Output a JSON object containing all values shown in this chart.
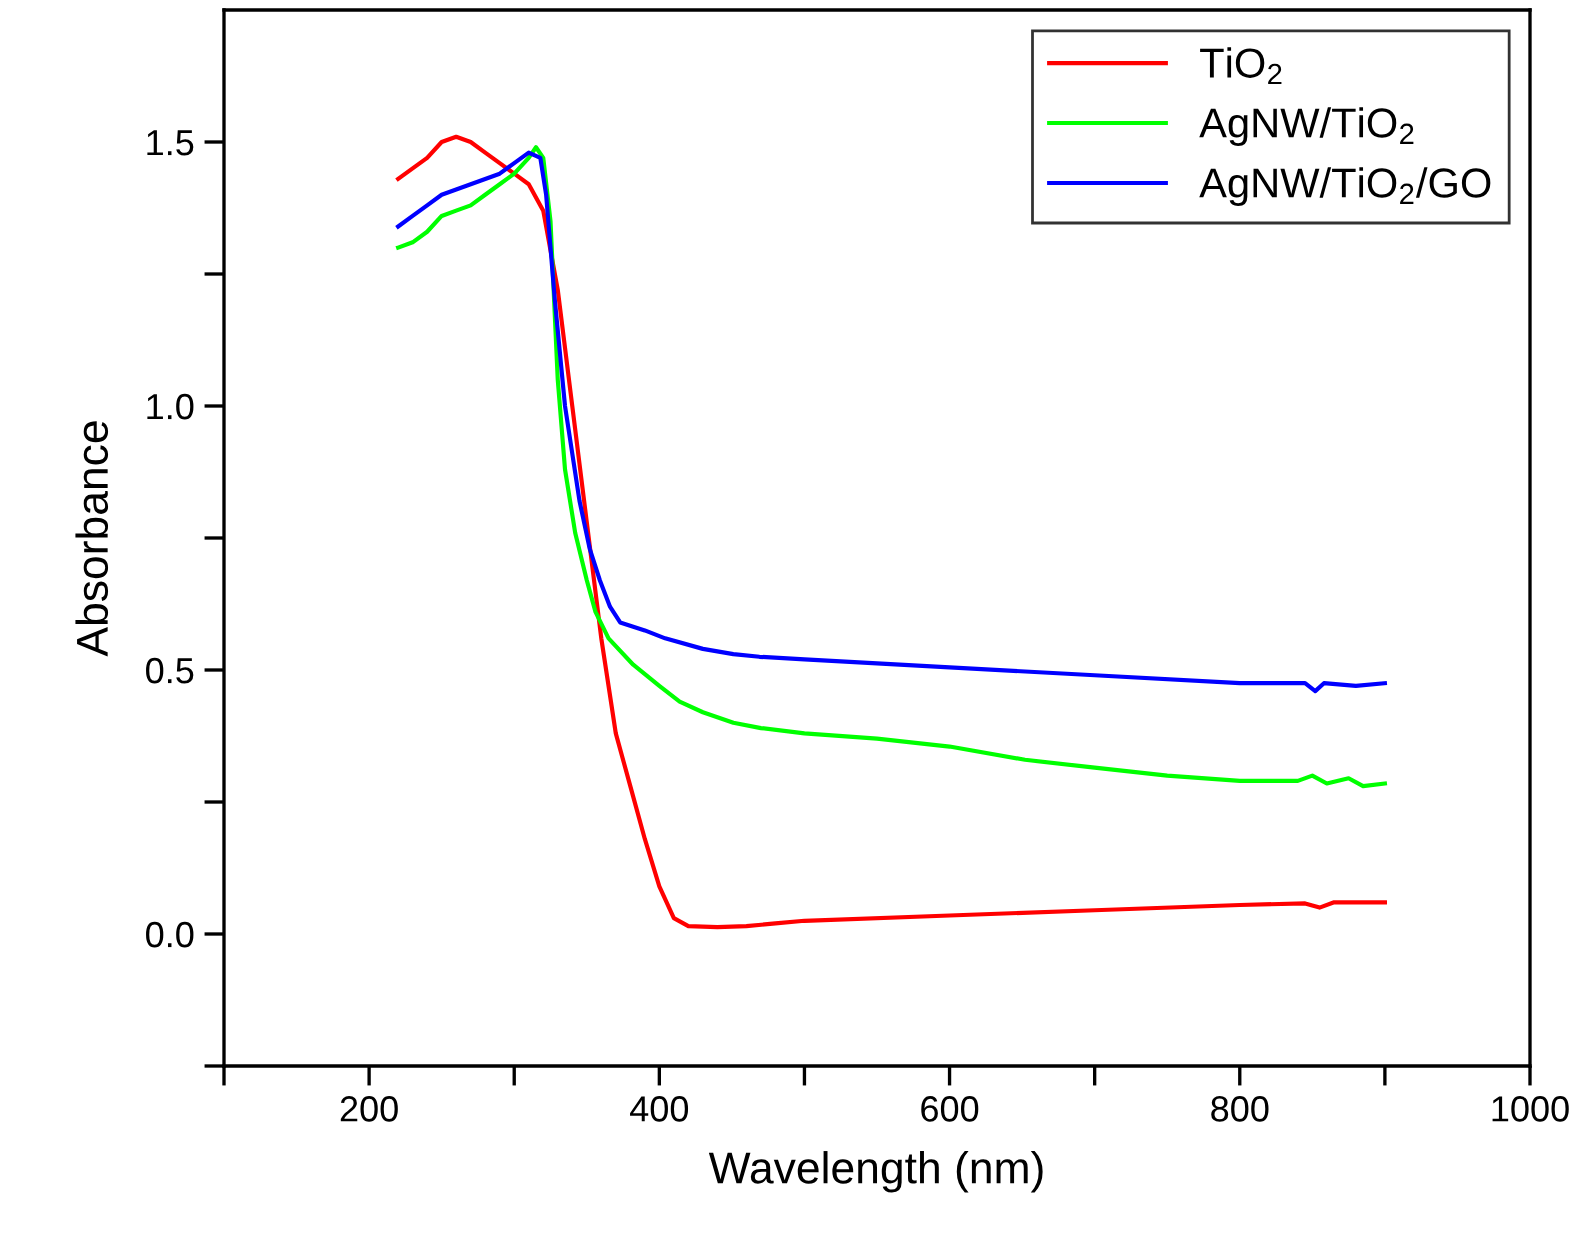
{
  "chart_data": {
    "type": "line",
    "xlabel": "Wavelength (nm)",
    "ylabel": "Absorbance",
    "xlim": [
      100,
      1000
    ],
    "ylim": [
      -0.25,
      1.75
    ],
    "xticks": [
      {
        "value": 100,
        "label": null
      },
      200,
      {
        "value": 300,
        "label": null
      },
      400,
      {
        "value": 500,
        "label": null
      },
      600,
      {
        "value": 700,
        "label": null
      },
      800,
      {
        "value": 900,
        "label": null
      },
      1000
    ],
    "yticks": [
      {
        "value": -0.25,
        "label": null
      },
      {
        "value": 0,
        "label": "0.0"
      },
      {
        "value": 0.25,
        "label": null
      },
      0.5,
      {
        "value": 0.75,
        "label": null
      },
      {
        "value": 1,
        "label": "1.0"
      },
      {
        "value": 1.25,
        "label": null
      },
      1.5
    ],
    "grid": false,
    "legend": "top right",
    "line_style": "solid",
    "marker": "none",
    "series": [
      {
        "name": "TiO$_{2}$",
        "color": "#ff0000",
        "x": [
          220,
          230,
          240,
          250,
          260,
          270,
          280,
          290,
          300,
          310,
          320,
          330,
          340,
          350,
          360,
          370,
          380,
          390,
          400,
          410,
          420,
          440,
          460,
          480,
          500,
          600,
          700,
          800,
          845,
          855,
          865,
          885,
          900
        ],
        "values": [
          1.43,
          1.45,
          1.47,
          1.5,
          1.51,
          1.5,
          1.48,
          1.46,
          1.44,
          1.42,
          1.37,
          1.22,
          1.0,
          0.78,
          0.56,
          0.38,
          0.28,
          0.18,
          0.09,
          0.03,
          0.015,
          0.013,
          0.015,
          0.02,
          0.025,
          0.035,
          0.045,
          0.055,
          0.058,
          0.05,
          0.06,
          0.06,
          0.06
        ]
      },
      {
        "name": "AgNW/TiO$_{2}$",
        "color": "#00ff00",
        "x": [
          220,
          230,
          240,
          250,
          260,
          270,
          280,
          290,
          300,
          310,
          315,
          320,
          325,
          330,
          335,
          342,
          350,
          356,
          365,
          382,
          400,
          414,
          430,
          451,
          470,
          500,
          550,
          600,
          652,
          700,
          750,
          800,
          840,
          850,
          860,
          875,
          885,
          900
        ],
        "values": [
          1.3,
          1.31,
          1.33,
          1.36,
          1.37,
          1.38,
          1.4,
          1.42,
          1.44,
          1.47,
          1.49,
          1.47,
          1.35,
          1.05,
          0.88,
          0.76,
          0.67,
          0.61,
          0.56,
          0.51,
          0.47,
          0.44,
          0.42,
          0.4,
          0.39,
          0.38,
          0.37,
          0.355,
          0.33,
          0.315,
          0.3,
          0.29,
          0.29,
          0.3,
          0.285,
          0.295,
          0.28,
          0.285
        ]
      },
      {
        "name": "AgNW/TiO$_{2}$/GO",
        "color": "#0000ff",
        "x": [
          220,
          230,
          240,
          250,
          260,
          270,
          280,
          290,
          300,
          310,
          318,
          322,
          328,
          335,
          345,
          352,
          359,
          366,
          373,
          390,
          404,
          430,
          451,
          469,
          500,
          600,
          700,
          800,
          845,
          852,
          858,
          880,
          900
        ],
        "values": [
          1.34,
          1.36,
          1.38,
          1.4,
          1.41,
          1.42,
          1.43,
          1.44,
          1.46,
          1.48,
          1.47,
          1.4,
          1.2,
          1.0,
          0.82,
          0.73,
          0.67,
          0.62,
          0.59,
          0.575,
          0.56,
          0.54,
          0.53,
          0.525,
          0.52,
          0.505,
          0.49,
          0.475,
          0.475,
          0.46,
          0.475,
          0.47,
          0.475
        ]
      }
    ]
  }
}
